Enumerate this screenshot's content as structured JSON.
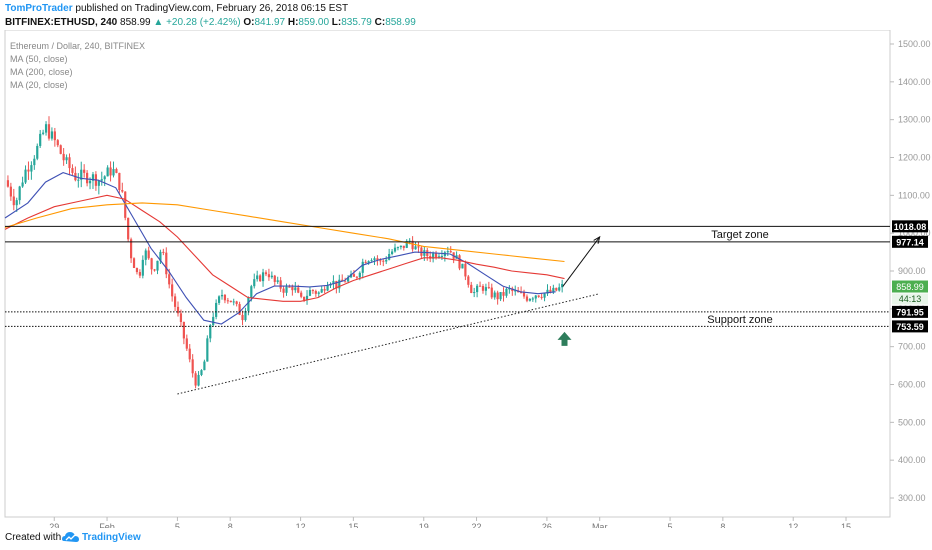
{
  "header": {
    "author": "TomProTrader",
    "published": "published on TradingView.com, February 26, 2018 06:15 EST",
    "symbol": "BITFINEX:ETHUSD, 240",
    "last": "858.99",
    "change": "▲ +20.28 (+2.42%)",
    "open_label": "O:",
    "open": "841.97",
    "high_label": "H:",
    "high": "859.00",
    "low_label": "L:",
    "low": "835.79",
    "close_label": "C:",
    "close": "858.99"
  },
  "legend": {
    "title": "Ethereum / Dollar, 240, BITFINEX",
    "ma50": "MA (50, close)",
    "ma200": "MA (200, close)",
    "ma20": "MA (20, close)"
  },
  "footer": {
    "created": "Created with",
    "brand": "TradingView"
  },
  "colors": {
    "up": "#26a69a",
    "down": "#ef5350",
    "ma20": "#3f51b5",
    "ma50": "#e53935",
    "ma200": "#ff9800",
    "last_badge": "#4caf50",
    "arrow_up": "#2e7d5b",
    "level_badge": "#000000"
  },
  "chart_data": {
    "type": "candlestick",
    "timeframe": "240",
    "y_axis": {
      "side": "right",
      "ylim": [
        300,
        1500
      ],
      "ticks": [
        300,
        400,
        500,
        600,
        700,
        800,
        900,
        1000,
        1100,
        1200,
        1300,
        1400,
        1500
      ],
      "tick_labels": [
        "300.00",
        "400.00",
        "500.00",
        "600.00",
        "700.00",
        "800.00",
        "900.00",
        "1000.00",
        "1100.00",
        "1200.00",
        "1300.00",
        "1400.00",
        "1500.00"
      ]
    },
    "x_axis": {
      "ticks": [
        {
          "label": "29",
          "day": 0
        },
        {
          "label": "Feb",
          "day": 3
        },
        {
          "label": "5",
          "day": 7
        },
        {
          "label": "8",
          "day": 10
        },
        {
          "label": "12",
          "day": 14
        },
        {
          "label": "15",
          "day": 17
        },
        {
          "label": "19",
          "day": 21
        },
        {
          "label": "22",
          "day": 24
        },
        {
          "label": "26",
          "day": 28
        },
        {
          "label": "Mar",
          "day": 31
        },
        {
          "label": "5",
          "day": 35
        },
        {
          "label": "8",
          "day": 38
        },
        {
          "label": "12",
          "day": 42
        },
        {
          "label": "15",
          "day": 45
        }
      ],
      "range": [
        -2.8,
        47.5
      ]
    },
    "price_path": [
      [
        -2.8,
        1140
      ],
      [
        -2.2,
        1080
      ],
      [
        -1.7,
        1160
      ],
      [
        -1.0,
        1220
      ],
      [
        -0.5,
        1280
      ],
      [
        0.0,
        1245
      ],
      [
        0.6,
        1190
      ],
      [
        1.2,
        1150
      ],
      [
        2.0,
        1150
      ],
      [
        2.6,
        1140
      ],
      [
        3.3,
        1170
      ],
      [
        3.8,
        1120
      ],
      [
        4.3,
        950
      ],
      [
        4.8,
        880
      ],
      [
        5.1,
        960
      ],
      [
        5.6,
        900
      ],
      [
        6.1,
        960
      ],
      [
        6.6,
        850
      ],
      [
        7.1,
        770
      ],
      [
        7.5,
        700
      ],
      [
        7.8,
        640
      ],
      [
        8.1,
        600
      ],
      [
        8.5,
        650
      ],
      [
        8.9,
        770
      ],
      [
        9.5,
        840
      ],
      [
        10.1,
        820
      ],
      [
        10.7,
        780
      ],
      [
        11.2,
        860
      ],
      [
        11.6,
        880
      ],
      [
        12.1,
        900
      ],
      [
        12.5,
        870
      ],
      [
        13.1,
        850
      ],
      [
        13.6,
        860
      ],
      [
        14.0,
        820
      ],
      [
        14.6,
        850
      ],
      [
        15.1,
        840
      ],
      [
        15.6,
        880
      ],
      [
        16.1,
        860
      ],
      [
        16.6,
        880
      ],
      [
        17.1,
        880
      ],
      [
        17.6,
        930
      ],
      [
        18.1,
        940
      ],
      [
        18.6,
        920
      ],
      [
        19.1,
        950
      ],
      [
        19.7,
        960
      ],
      [
        20.2,
        980
      ],
      [
        20.7,
        950
      ],
      [
        21.3,
        940
      ],
      [
        21.9,
        950
      ],
      [
        22.4,
        960
      ],
      [
        22.9,
        930
      ],
      [
        23.4,
        890
      ],
      [
        23.8,
        840
      ],
      [
        24.3,
        860
      ],
      [
        24.8,
        840
      ],
      [
        25.3,
        830
      ],
      [
        25.8,
        850
      ],
      [
        26.3,
        840
      ],
      [
        26.9,
        830
      ],
      [
        27.4,
        840
      ],
      [
        27.9,
        840
      ],
      [
        28.4,
        845
      ],
      [
        28.9,
        858.99
      ]
    ],
    "moving_averages": [
      {
        "name": "MA (20, close)",
        "points": [
          [
            -2.8,
            1040
          ],
          [
            -1.5,
            1080
          ],
          [
            -0.5,
            1135
          ],
          [
            0.5,
            1160
          ],
          [
            1.5,
            1145
          ],
          [
            2.5,
            1140
          ],
          [
            3.5,
            1120
          ],
          [
            4.5,
            1040
          ],
          [
            5.5,
            960
          ],
          [
            6.5,
            900
          ],
          [
            7.5,
            830
          ],
          [
            8.5,
            770
          ],
          [
            9.5,
            760
          ],
          [
            10.5,
            790
          ],
          [
            11.5,
            840
          ],
          [
            12.5,
            860
          ],
          [
            13.5,
            860
          ],
          [
            14.5,
            858
          ],
          [
            15.5,
            862
          ],
          [
            16.5,
            875
          ],
          [
            17.5,
            915
          ],
          [
            18.5,
            930
          ],
          [
            19.5,
            940
          ],
          [
            20.5,
            950
          ],
          [
            21.5,
            948
          ],
          [
            22.5,
            945
          ],
          [
            23.5,
            920
          ],
          [
            24.5,
            890
          ],
          [
            25.5,
            860
          ],
          [
            26.5,
            845
          ],
          [
            27.5,
            840
          ],
          [
            28.5,
            845
          ]
        ]
      },
      {
        "name": "MA (50, close)",
        "points": [
          [
            -2.8,
            1010
          ],
          [
            -1.5,
            1040
          ],
          [
            0.0,
            1070
          ],
          [
            1.5,
            1085
          ],
          [
            3.0,
            1100
          ],
          [
            4.0,
            1090
          ],
          [
            5.0,
            1060
          ],
          [
            6.0,
            1030
          ],
          [
            7.0,
            990
          ],
          [
            8.0,
            940
          ],
          [
            9.0,
            890
          ],
          [
            10.0,
            860
          ],
          [
            11.0,
            830
          ],
          [
            12.0,
            825
          ],
          [
            13.0,
            820
          ],
          [
            14.0,
            820
          ],
          [
            15.0,
            830
          ],
          [
            16.0,
            855
          ],
          [
            17.0,
            875
          ],
          [
            18.0,
            890
          ],
          [
            19.0,
            905
          ],
          [
            20.0,
            920
          ],
          [
            21.0,
            935
          ],
          [
            22.0,
            935
          ],
          [
            23.0,
            928
          ],
          [
            24.0,
            918
          ],
          [
            25.0,
            910
          ],
          [
            26.0,
            900
          ],
          [
            27.0,
            895
          ],
          [
            28.0,
            890
          ],
          [
            29.0,
            880
          ]
        ]
      },
      {
        "name": "MA (200, close)",
        "points": [
          [
            -2.8,
            1015
          ],
          [
            -1.0,
            1040
          ],
          [
            1.0,
            1065
          ],
          [
            3.0,
            1075
          ],
          [
            5.0,
            1080
          ],
          [
            7.0,
            1075
          ],
          [
            9.0,
            1060
          ],
          [
            11.0,
            1045
          ],
          [
            13.0,
            1030
          ],
          [
            15.0,
            1015
          ],
          [
            17.0,
            1000
          ],
          [
            19.0,
            985
          ],
          [
            21.0,
            965
          ],
          [
            23.0,
            955
          ],
          [
            25.0,
            945
          ],
          [
            27.0,
            935
          ],
          [
            29.0,
            925
          ]
        ]
      }
    ],
    "horizontal_levels": [
      {
        "value": 1018.08,
        "label": "1018.08",
        "style": "solid"
      },
      {
        "value": 977.14,
        "label": "977.14",
        "style": "solid"
      },
      {
        "value": 791.95,
        "label": "791.95",
        "style": "dotted"
      },
      {
        "value": 753.59,
        "label": "753.59",
        "style": "dotted"
      }
    ],
    "zones": [
      {
        "label": "Target zone",
        "top": 1018.08,
        "bottom": 977.14
      },
      {
        "label": "Support zone",
        "top": 791.95,
        "bottom": 753.59
      }
    ],
    "trendline": {
      "from": [
        7.0,
        575
      ],
      "to": [
        31.0,
        840
      ],
      "style": "dotted"
    },
    "projection_arrow": {
      "from": [
        28.9,
        858.99
      ],
      "to": [
        31.0,
        990
      ]
    },
    "marker_up_arrow": {
      "at": [
        29.0,
        718
      ]
    },
    "last_price_badge": {
      "value": 858.99,
      "label": "858.99",
      "countdown": "44:13"
    }
  }
}
